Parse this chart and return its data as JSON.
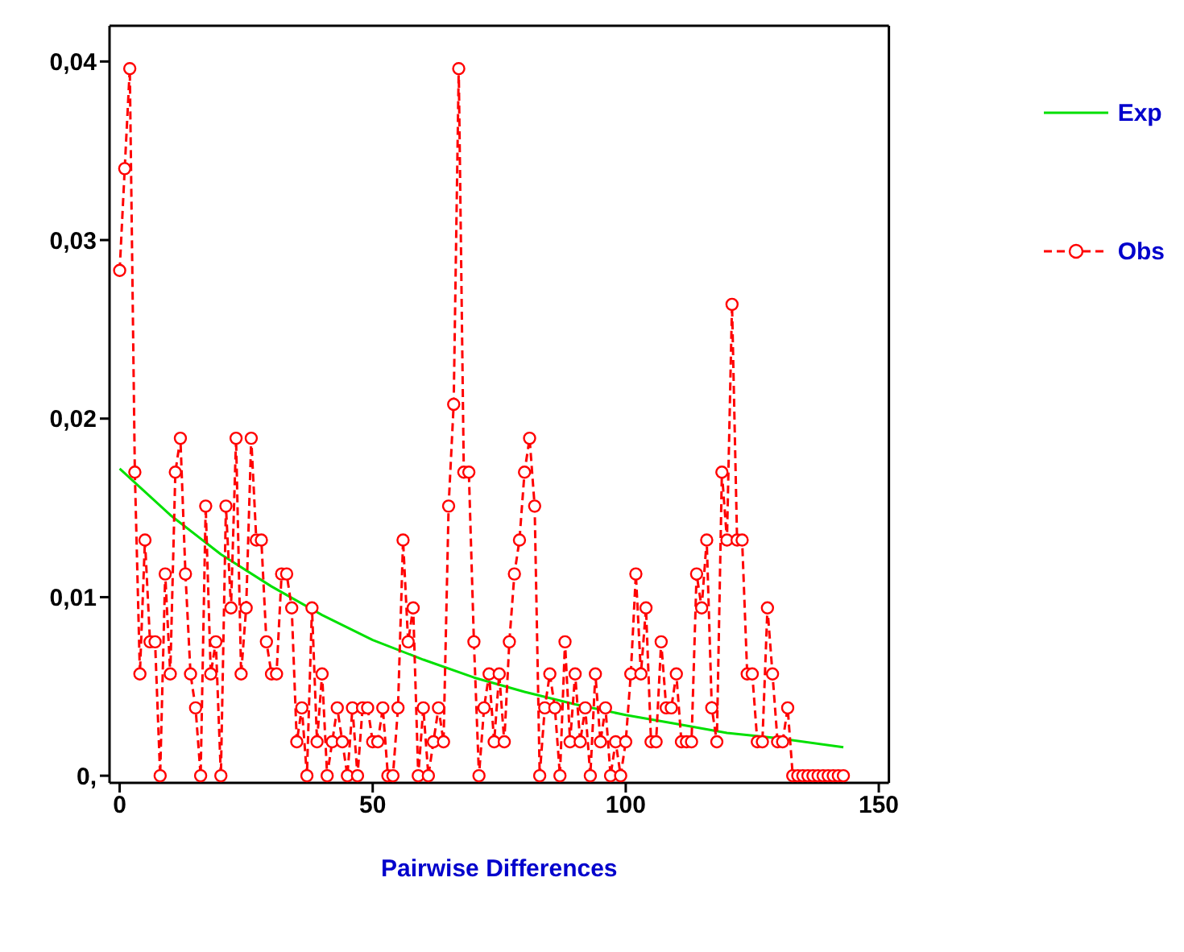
{
  "chart_data": {
    "type": "line",
    "xlabel": "Pairwise Differences",
    "xlim": [
      -2,
      152
    ],
    "xticks": [
      0,
      50,
      100,
      150
    ],
    "ylim": [
      -0.0004,
      0.042
    ],
    "yticks": [
      {
        "value": 0,
        "label": "0,"
      },
      {
        "value": 0.01,
        "label": "0,01"
      },
      {
        "value": 0.02,
        "label": "0,02"
      },
      {
        "value": 0.03,
        "label": "0,03"
      },
      {
        "value": 0.04,
        "label": "0,04"
      }
    ],
    "grid": false,
    "legend": "right",
    "series": [
      {
        "name": "Exp",
        "color": "#00e000",
        "line_style": "solid",
        "marker": "none",
        "x": [
          0,
          10,
          20,
          30,
          40,
          50,
          60,
          70,
          80,
          90,
          100,
          110,
          120,
          130,
          143
        ],
        "values": [
          0.0172,
          0.0146,
          0.0124,
          0.0106,
          0.009,
          0.0076,
          0.0065,
          0.0055,
          0.0047,
          0.004,
          0.0034,
          0.0029,
          0.0024,
          0.0021,
          0.0016
        ]
      },
      {
        "name": "Obs",
        "color": "#ff0000",
        "line_style": "dashed",
        "marker": "circle",
        "x": [
          0,
          1,
          2,
          3,
          4,
          5,
          6,
          7,
          8,
          9,
          10,
          11,
          12,
          13,
          14,
          15,
          16,
          17,
          18,
          19,
          20,
          21,
          22,
          23,
          24,
          25,
          26,
          27,
          28,
          29,
          30,
          31,
          32,
          33,
          34,
          35,
          36,
          37,
          38,
          39,
          40,
          41,
          42,
          43,
          44,
          45,
          46,
          47,
          48,
          49,
          50,
          51,
          52,
          53,
          54,
          55,
          56,
          57,
          58,
          59,
          60,
          61,
          62,
          63,
          64,
          65,
          66,
          67,
          68,
          69,
          70,
          71,
          72,
          73,
          74,
          75,
          76,
          77,
          78,
          79,
          80,
          81,
          82,
          83,
          84,
          85,
          86,
          87,
          88,
          89,
          90,
          91,
          92,
          93,
          94,
          95,
          96,
          97,
          98,
          99,
          100,
          101,
          102,
          103,
          104,
          105,
          106,
          107,
          108,
          109,
          110,
          111,
          112,
          113,
          114,
          115,
          116,
          117,
          118,
          119,
          120,
          121,
          122,
          123,
          124,
          125,
          126,
          127,
          128,
          129,
          130,
          131,
          132,
          133,
          134,
          135,
          136,
          137,
          138,
          139,
          140,
          141,
          142,
          143
        ],
        "values": [
          0.0283,
          0.034,
          0.0396,
          0.017,
          0.0057,
          0.0132,
          0.0075,
          0.0075,
          0,
          0.0113,
          0.0057,
          0.017,
          0.0189,
          0.0113,
          0.0057,
          0.0038,
          0,
          0.0151,
          0.0057,
          0.0075,
          0,
          0.0151,
          0.0094,
          0.0189,
          0.0057,
          0.0094,
          0.0189,
          0.0132,
          0.0132,
          0.0075,
          0.0057,
          0.0057,
          0.0113,
          0.0113,
          0.0094,
          0.0019,
          0.0038,
          0,
          0.0094,
          0.0019,
          0.0057,
          0,
          0.0019,
          0.0038,
          0.0019,
          0,
          0.0038,
          0,
          0.0038,
          0.0038,
          0.0019,
          0.0019,
          0.0038,
          0,
          0,
          0.0038,
          0.0132,
          0.0075,
          0.0094,
          0,
          0.0038,
          0,
          0.0019,
          0.0038,
          0.0019,
          0.0151,
          0.0208,
          0.0396,
          0.017,
          0.017,
          0.0075,
          0,
          0.0038,
          0.0057,
          0.0019,
          0.0057,
          0.0019,
          0.0075,
          0.0113,
          0.0132,
          0.017,
          0.0189,
          0.0151,
          0,
          0.0038,
          0.0057,
          0.0038,
          0,
          0.0075,
          0.0019,
          0.0057,
          0.0019,
          0.0038,
          0,
          0.0057,
          0.0019,
          0.0038,
          0,
          0.0019,
          0,
          0.0019,
          0.0057,
          0.0113,
          0.0057,
          0.0094,
          0.0019,
          0.0019,
          0.0075,
          0.0038,
          0.0038,
          0.0057,
          0.0019,
          0.0019,
          0.0019,
          0.0113,
          0.0094,
          0.0132,
          0.0038,
          0.0019,
          0.017,
          0.0132,
          0.0264,
          0.0132,
          0.0132,
          0.0057,
          0.0057,
          0.0019,
          0.0019,
          0.0094,
          0.0057,
          0.0019,
          0.0019,
          0.0038,
          0,
          0,
          0,
          0,
          0,
          0,
          0,
          0,
          0,
          0,
          0
        ]
      }
    ]
  }
}
